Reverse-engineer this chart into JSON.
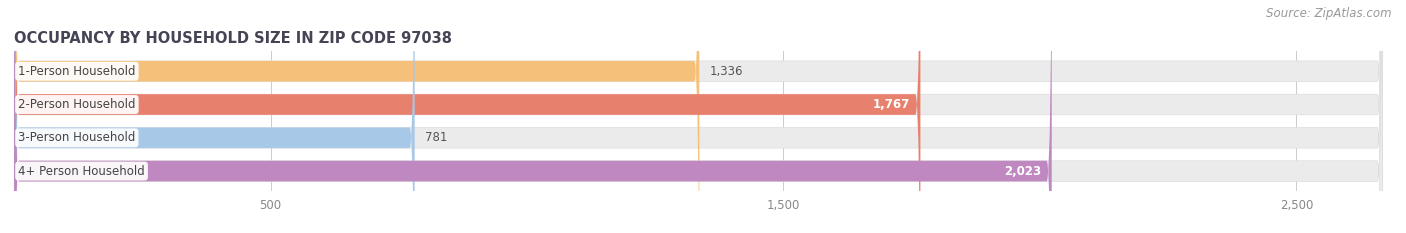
{
  "title": "OCCUPANCY BY HOUSEHOLD SIZE IN ZIP CODE 97038",
  "source": "Source: ZipAtlas.com",
  "categories": [
    "1-Person Household",
    "2-Person Household",
    "3-Person Household",
    "4+ Person Household"
  ],
  "values": [
    1336,
    1767,
    781,
    2023
  ],
  "bar_colors": [
    "#f5c07a",
    "#e8806e",
    "#a8c8e8",
    "#c088c0"
  ],
  "value_inside": [
    false,
    true,
    false,
    true
  ],
  "background_color": "#ffffff",
  "bar_bg_color": "#ebebeb",
  "xlim": [
    0,
    2700
  ],
  "xticks": [
    500,
    1500,
    2500
  ],
  "bar_height": 0.62,
  "title_fontsize": 10.5,
  "label_fontsize": 8.5,
  "tick_fontsize": 8.5,
  "source_fontsize": 8.5
}
